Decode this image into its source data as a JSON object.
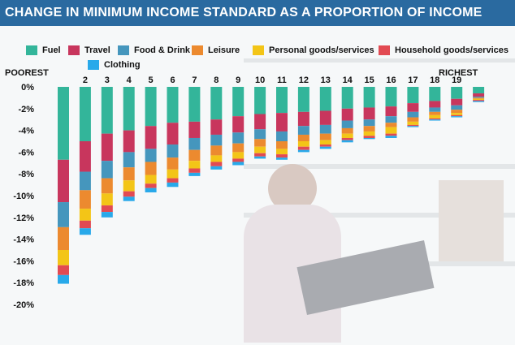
{
  "banner": {
    "title": "CHANGE IN MINIMUM INCOME STANDARD AS A PROPORTION OF INCOME"
  },
  "labels": {
    "poorest": "POOREST",
    "richest": "RICHEST"
  },
  "colors": {
    "Fuel": "#33b59a",
    "Travel": "#c8365d",
    "Food & Drink": "#4596bd",
    "Leisure": "#ec8a2f",
    "Personal goods/services": "#f3c517",
    "Household goods/services": "#e24a52",
    "Clothing": "#28a9ea"
  },
  "chart_data": {
    "type": "bar",
    "stacked": true,
    "title": "CHANGE IN MINIMUM INCOME STANDARD AS A PROPORTION OF INCOME",
    "xlabel": "",
    "ylabel": "",
    "ylim": [
      -20,
      0
    ],
    "yticks": [
      "0%",
      "-2%",
      "-4%",
      "-6%",
      "-8%",
      "-10%",
      "-12%",
      "-14%",
      "-16%",
      "-18%",
      "-20%"
    ],
    "categories": [
      "",
      "2",
      "3",
      "4",
      "5",
      "6",
      "7",
      "8",
      "9",
      "10",
      "11",
      "12",
      "13",
      "14",
      "15",
      "16",
      "17",
      "18",
      "19",
      ""
    ],
    "series": [
      {
        "name": "Fuel",
        "values": [
          -6.7,
          -5.0,
          -4.3,
          -4.0,
          -3.6,
          -3.3,
          -3.2,
          -3.0,
          -2.7,
          -2.5,
          -2.4,
          -2.3,
          -2.2,
          -2.0,
          -1.9,
          -1.8,
          -1.5,
          -1.3,
          -1.1,
          -0.6
        ]
      },
      {
        "name": "Travel",
        "values": [
          -3.9,
          -2.8,
          -2.5,
          -2.0,
          -2.1,
          -2.0,
          -1.5,
          -1.4,
          -1.5,
          -1.4,
          -1.7,
          -1.3,
          -1.3,
          -1.1,
          -1.1,
          -0.9,
          -0.8,
          -0.6,
          -0.6,
          -0.3
        ]
      },
      {
        "name": "Food & Drink",
        "values": [
          -2.3,
          -1.7,
          -1.6,
          -1.4,
          -1.2,
          -1.2,
          -1.1,
          -1.0,
          -1.0,
          -0.9,
          -0.9,
          -0.8,
          -0.8,
          -0.7,
          -0.6,
          -0.6,
          -0.5,
          -0.4,
          -0.4,
          -0.1
        ]
      },
      {
        "name": "Leisure",
        "values": [
          -2.1,
          -1.7,
          -1.4,
          -1.2,
          -1.2,
          -1.1,
          -1.0,
          -0.9,
          -0.8,
          -0.7,
          -0.7,
          -0.6,
          -0.6,
          -0.5,
          -0.5,
          -0.4,
          -0.4,
          -0.3,
          -0.3,
          -0.1
        ]
      },
      {
        "name": "Personal goods/services",
        "values": [
          -1.4,
          -1.1,
          -1.1,
          -1.0,
          -0.8,
          -0.8,
          -0.7,
          -0.6,
          -0.6,
          -0.6,
          -0.5,
          -0.5,
          -0.4,
          -0.4,
          -0.4,
          -0.6,
          -0.3,
          -0.3,
          -0.2,
          -0.1
        ]
      },
      {
        "name": "Household goods/services",
        "values": [
          -0.9,
          -0.7,
          -0.6,
          -0.5,
          -0.4,
          -0.4,
          -0.4,
          -0.4,
          -0.3,
          -0.3,
          -0.3,
          -0.3,
          -0.2,
          -0.2,
          -0.2,
          -0.2,
          -0.1,
          -0.1,
          -0.1,
          -0.1
        ]
      },
      {
        "name": "Clothing",
        "values": [
          -0.8,
          -0.6,
          -0.5,
          -0.4,
          -0.4,
          -0.4,
          -0.3,
          -0.3,
          -0.3,
          -0.2,
          -0.2,
          -0.2,
          -0.2,
          -0.2,
          -0.1,
          -0.2,
          -0.1,
          -0.1,
          -0.1,
          -0.1
        ]
      }
    ]
  }
}
